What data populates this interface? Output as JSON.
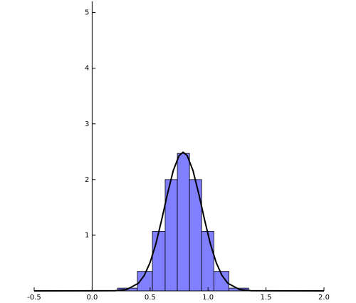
{
  "chart_data": {
    "type": "histogram",
    "bins": [
      0.22,
      0.39,
      0.52,
      0.63,
      0.735,
      0.84,
      0.945,
      1.05,
      1.18,
      1.35
    ],
    "counts": [
      0.05,
      0.35,
      1.07,
      2.0,
      2.47,
      2.0,
      1.07,
      0.35,
      0.05
    ],
    "color": "#8080ff",
    "curve": {
      "color": "#000000",
      "x": [
        -0.5,
        0.2,
        0.3,
        0.4,
        0.45,
        0.5,
        0.55,
        0.6,
        0.65,
        0.7,
        0.75,
        0.785,
        0.82,
        0.87,
        0.92,
        0.97,
        1.02,
        1.07,
        1.12,
        1.17,
        1.27,
        1.37,
        2.0
      ],
      "y": [
        0,
        0.003,
        0.025,
        0.138,
        0.278,
        0.51,
        0.846,
        1.277,
        1.744,
        2.162,
        2.43,
        2.49,
        2.43,
        2.162,
        1.744,
        1.277,
        0.846,
        0.51,
        0.278,
        0.138,
        0.025,
        0.003,
        0
      ]
    },
    "xlim": [
      -0.5,
      2.0
    ],
    "ylim": [
      0,
      5.2
    ],
    "xticks": [
      -0.5,
      {
        "value": 0,
        "label": "0.0"
      },
      0.5,
      {
        "value": 1,
        "label": "1.0"
      },
      1.5,
      {
        "value": 2,
        "label": "2.0"
      }
    ],
    "yticks": [
      1,
      2,
      3,
      4,
      5
    ]
  }
}
